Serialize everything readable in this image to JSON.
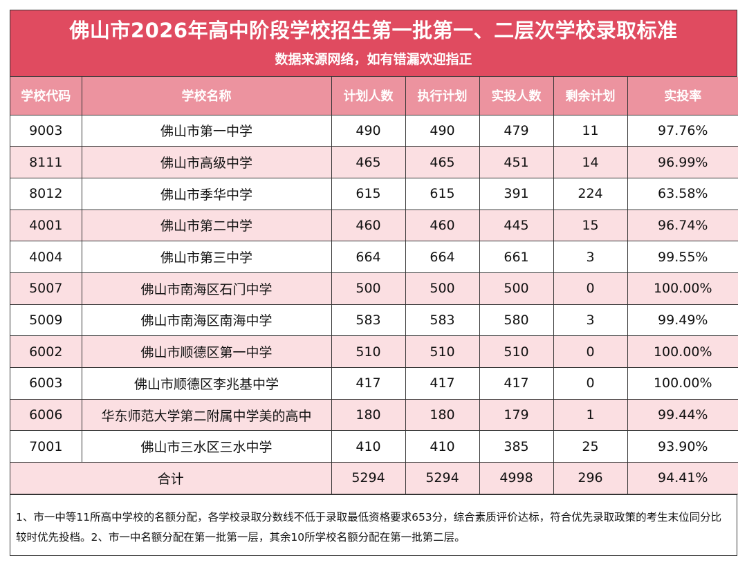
{
  "header": {
    "title": "佛山市2026年高中阶段学校招生第一批第一、二层次学校录取标准",
    "subtitle": "数据来源网络，如有错漏欢迎指正"
  },
  "table": {
    "columns": [
      "学校代码",
      "学校名称",
      "计划人数",
      "执行计划",
      "实投人数",
      "剩余计划",
      "实投率"
    ],
    "rows": [
      {
        "code": "9003",
        "name": "佛山市第一中学",
        "plan": "490",
        "exec": "490",
        "actual": "479",
        "remain": "11",
        "rate": "97.76%"
      },
      {
        "code": "8111",
        "name": "佛山市高级中学",
        "plan": "465",
        "exec": "465",
        "actual": "451",
        "remain": "14",
        "rate": "96.99%"
      },
      {
        "code": "8012",
        "name": "佛山市季华中学",
        "plan": "615",
        "exec": "615",
        "actual": "391",
        "remain": "224",
        "rate": "63.58%"
      },
      {
        "code": "4001",
        "name": "佛山市第二中学",
        "plan": "460",
        "exec": "460",
        "actual": "445",
        "remain": "15",
        "rate": "96.74%"
      },
      {
        "code": "4004",
        "name": "佛山市第三中学",
        "plan": "664",
        "exec": "664",
        "actual": "661",
        "remain": "3",
        "rate": "99.55%"
      },
      {
        "code": "5007",
        "name": "佛山市南海区石门中学",
        "plan": "500",
        "exec": "500",
        "actual": "500",
        "remain": "0",
        "rate": "100.00%"
      },
      {
        "code": "5009",
        "name": "佛山市南海区南海中学",
        "plan": "583",
        "exec": "583",
        "actual": "580",
        "remain": "3",
        "rate": "99.49%"
      },
      {
        "code": "6002",
        "name": "佛山市顺德区第一中学",
        "plan": "510",
        "exec": "510",
        "actual": "510",
        "remain": "0",
        "rate": "100.00%"
      },
      {
        "code": "6003",
        "name": "佛山市顺德区李兆基中学",
        "plan": "417",
        "exec": "417",
        "actual": "417",
        "remain": "0",
        "rate": "100.00%"
      },
      {
        "code": "6006",
        "name": "华东师范大学第二附属中学美的高中",
        "plan": "180",
        "exec": "180",
        "actual": "179",
        "remain": "1",
        "rate": "99.44%"
      },
      {
        "code": "7001",
        "name": "佛山市三水区三水中学",
        "plan": "410",
        "exec": "410",
        "actual": "385",
        "remain": "25",
        "rate": "93.90%"
      }
    ],
    "total": {
      "label": "合计",
      "plan": "5294",
      "exec": "5294",
      "actual": "4998",
      "remain": "296",
      "rate": "94.41%"
    }
  },
  "note": "1、市一中等11所高中学校的名额分配，各学校录取分数线不低于录取最低资格要求653分，综合素质评价达标，符合优先录取政策的考生末位同分比较时优先投档。2、市一中名额分配在第一批第一层，其余10所学校名额分配在第一批第二层。",
  "colors": {
    "title_bg": "#e04b60",
    "header_bg": "#ec939f",
    "stripe_bg": "#fbdfe2"
  }
}
